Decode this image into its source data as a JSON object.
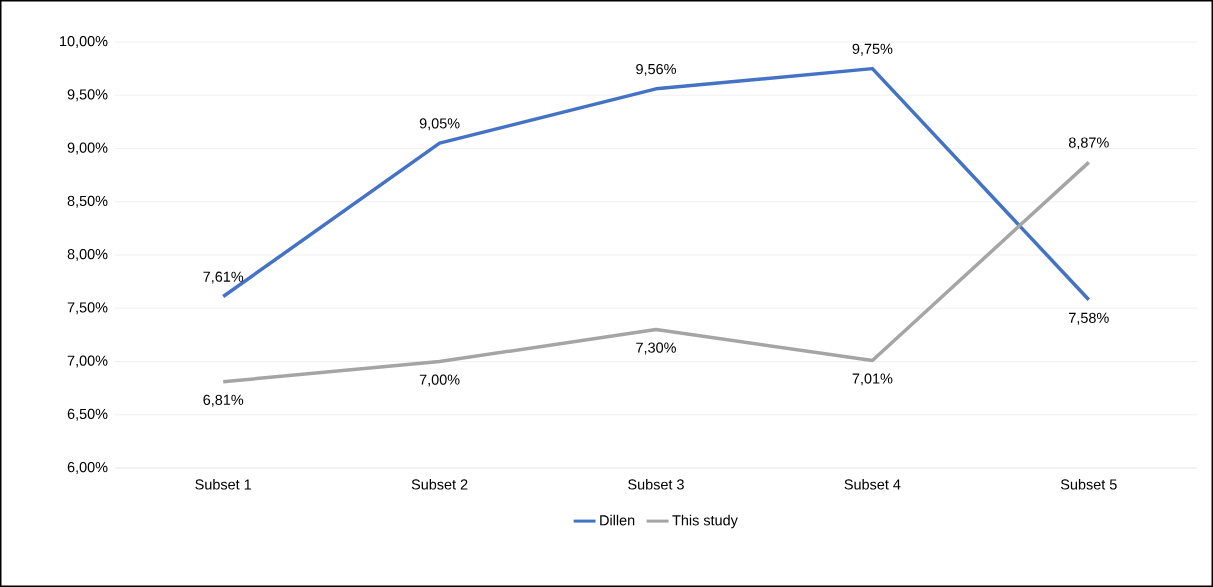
{
  "chart_data": {
    "type": "line",
    "categories": [
      "Subset 1",
      "Subset 2",
      "Subset 3",
      "Subset 4",
      "Subset 5"
    ],
    "series": [
      {
        "name": "Dillen",
        "color": "#4472c4",
        "values": [
          7.61,
          9.05,
          9.56,
          9.75,
          7.58
        ],
        "value_labels": [
          "7,61%",
          "9,05%",
          "9,56%",
          "9,75%",
          "7,58%"
        ]
      },
      {
        "name": "This study",
        "color": "#a5a5a5",
        "values": [
          6.81,
          7.0,
          7.3,
          7.01,
          8.87
        ],
        "value_labels": [
          "6,81%",
          "7,00%",
          "7,30%",
          "7,01%",
          "8,87%"
        ]
      }
    ],
    "ylim": [
      6,
      10
    ],
    "yticks": [
      {
        "value": 6,
        "label": "6,00%"
      },
      {
        "value": 6.5,
        "label": "6,50%"
      },
      {
        "value": 7,
        "label": "7,00%"
      },
      {
        "value": 7.5,
        "label": "7,50%"
      },
      {
        "value": 8,
        "label": "8,00%"
      },
      {
        "value": 8.5,
        "label": "8,50%"
      },
      {
        "value": 9,
        "label": "9,00%"
      },
      {
        "value": 9.5,
        "label": "9,50%"
      },
      {
        "value": 10,
        "label": "10,00%"
      }
    ],
    "grid": "y",
    "legend": "bottom",
    "marker": "none",
    "line_style": "solid"
  }
}
